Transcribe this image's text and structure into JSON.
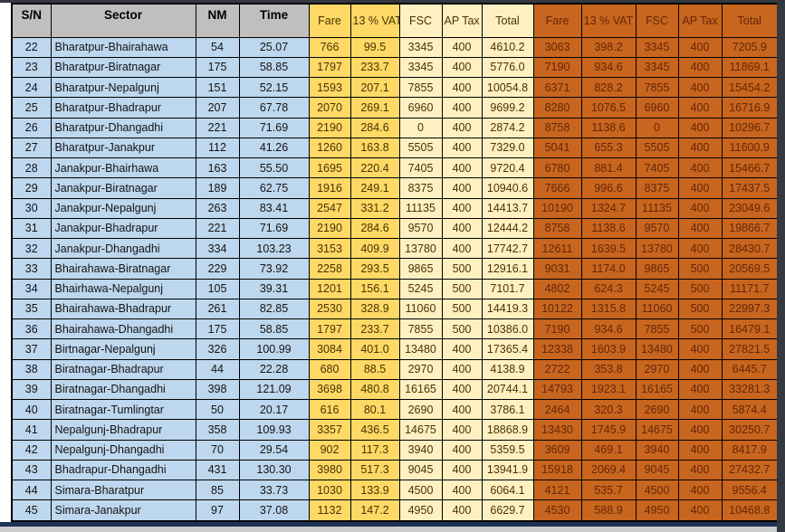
{
  "colors": {
    "header_gray": "#BFBFBF",
    "row_blue": "#BDD7EE",
    "gold": "#FFD966",
    "cream": "#FFF0C2",
    "orange": "#C8651E",
    "yellow_text": "#4A3300",
    "orange_text": "#652708",
    "frame_dark": "#343840",
    "frame_navy": "#1E3255",
    "frame_gray": "#CDCDCD"
  },
  "table": {
    "headers": [
      "S/N",
      "Sector",
      "NM",
      "Time",
      "Fare",
      "13 % VAT",
      "FSC",
      "AP Tax",
      "Total",
      "Fare",
      "13 % VAT",
      "FSC",
      "AP Tax",
      "Total"
    ],
    "rows": [
      [
        "22",
        "Bharatpur-Bhairahawa",
        "54",
        "25.07",
        "766",
        "99.5",
        "3345",
        "400",
        "4610.2",
        "3063",
        "398.2",
        "3345",
        "400",
        "7205.9"
      ],
      [
        "23",
        "Bharatpur-Biratnagar",
        "175",
        "58.85",
        "1797",
        "233.7",
        "3345",
        "400",
        "5776.0",
        "7190",
        "934.6",
        "3345",
        "400",
        "11869.1"
      ],
      [
        "24",
        "Bharatpur-Nepalgunj",
        "151",
        "52.15",
        "1593",
        "207.1",
        "7855",
        "400",
        "10054.8",
        "6371",
        "828.2",
        "7855",
        "400",
        "15454.2"
      ],
      [
        "25",
        "Bharatpur-Bhadrapur",
        "207",
        "67.78",
        "2070",
        "269.1",
        "6960",
        "400",
        "9699.2",
        "8280",
        "1076.5",
        "6960",
        "400",
        "16716.9"
      ],
      [
        "26",
        "Bharatpur-Dhangadhi",
        "221",
        "71.69",
        "2190",
        "284.6",
        "0",
        "400",
        "2874.2",
        "8758",
        "1138.6",
        "0",
        "400",
        "10296.7"
      ],
      [
        "27",
        "Bharatpur-Janakpur",
        "112",
        "41.26",
        "1260",
        "163.8",
        "5505",
        "400",
        "7329.0",
        "5041",
        "655.3",
        "5505",
        "400",
        "11600.9"
      ],
      [
        "28",
        "Janakpur-Bhairhawa",
        "163",
        "55.50",
        "1695",
        "220.4",
        "7405",
        "400",
        "9720.4",
        "6780",
        "881.4",
        "7405",
        "400",
        "15466.7"
      ],
      [
        "29",
        "Janakpur-Biratnagar",
        "189",
        "62.75",
        "1916",
        "249.1",
        "8375",
        "400",
        "10940.6",
        "7666",
        "996.6",
        "8375",
        "400",
        "17437.5"
      ],
      [
        "30",
        "Janakpur-Nepalgunj",
        "263",
        "83.41",
        "2547",
        "331.2",
        "11135",
        "400",
        "14413.7",
        "10190",
        "1324.7",
        "11135",
        "400",
        "23049.6"
      ],
      [
        "31",
        "Janakpur-Bhadrapur",
        "221",
        "71.69",
        "2190",
        "284.6",
        "9570",
        "400",
        "12444.2",
        "8758",
        "1138.6",
        "9570",
        "400",
        "19866.7"
      ],
      [
        "32",
        "Janakpur-Dhangadhi",
        "334",
        "103.23",
        "3153",
        "409.9",
        "13780",
        "400",
        "17742.7",
        "12611",
        "1639.5",
        "13780",
        "400",
        "28430.7"
      ],
      [
        "33",
        "Bhairahawa-Biratnagar",
        "229",
        "73.92",
        "2258",
        "293.5",
        "9865",
        "500",
        "12916.1",
        "9031",
        "1174.0",
        "9865",
        "500",
        "20569.5"
      ],
      [
        "34",
        "Bhairhawa-Nepalgunj",
        "105",
        "39.31",
        "1201",
        "156.1",
        "5245",
        "500",
        "7101.7",
        "4802",
        "624.3",
        "5245",
        "500",
        "11171.7"
      ],
      [
        "35",
        "Bhairahawa-Bhadrapur",
        "261",
        "82.85",
        "2530",
        "328.9",
        "11060",
        "500",
        "14419.3",
        "10122",
        "1315.8",
        "11060",
        "500",
        "22997.3"
      ],
      [
        "36",
        "Bhairahawa-Dhangadhi",
        "175",
        "58.85",
        "1797",
        "233.7",
        "7855",
        "500",
        "10386.0",
        "7190",
        "934.6",
        "7855",
        "500",
        "16479.1"
      ],
      [
        "37",
        "Birtnagar-Nepalgunj",
        "326",
        "100.99",
        "3084",
        "401.0",
        "13480",
        "400",
        "17365.4",
        "12338",
        "1603.9",
        "13480",
        "400",
        "27821.5"
      ],
      [
        "38",
        "Biratnagar-Bhadrapur",
        "44",
        "22.28",
        "680",
        "88.5",
        "2970",
        "400",
        "4138.9",
        "2722",
        "353.8",
        "2970",
        "400",
        "6445.7"
      ],
      [
        "39",
        "Biratnagar-Dhangadhi",
        "398",
        "121.09",
        "3698",
        "480.8",
        "16165",
        "400",
        "20744.1",
        "14793",
        "1923.1",
        "16165",
        "400",
        "33281.3"
      ],
      [
        "40",
        "Biratnagar-Tumlingtar",
        "50",
        "20.17",
        "616",
        "80.1",
        "2690",
        "400",
        "3786.1",
        "2464",
        "320.3",
        "2690",
        "400",
        "5874.4"
      ],
      [
        "41",
        "Nepalgunj-Bhadrapur",
        "358",
        "109.93",
        "3357",
        "436.5",
        "14675",
        "400",
        "18868.9",
        "13430",
        "1745.9",
        "14675",
        "400",
        "30250.7"
      ],
      [
        "42",
        "Nepalgunj-Dhangadhi",
        "70",
        "29.54",
        "902",
        "117.3",
        "3940",
        "400",
        "5359.5",
        "3609",
        "469.1",
        "3940",
        "400",
        "8417.9"
      ],
      [
        "43",
        "Bhadrapur-Dhangadhi",
        "431",
        "130.30",
        "3980",
        "517.3",
        "9045",
        "400",
        "13941.9",
        "15918",
        "2069.4",
        "9045",
        "400",
        "27432.7"
      ],
      [
        "44",
        "Simara-Bharatpur",
        "85",
        "33.73",
        "1030",
        "133.9",
        "4500",
        "400",
        "6064.1",
        "4121",
        "535.7",
        "4500",
        "400",
        "9556.4"
      ],
      [
        "45",
        "Simara-Janakpur",
        "97",
        "37.08",
        "1132",
        "147.2",
        "4950",
        "400",
        "6629.7",
        "4530",
        "588.9",
        "4950",
        "400",
        "10468.8"
      ]
    ]
  }
}
